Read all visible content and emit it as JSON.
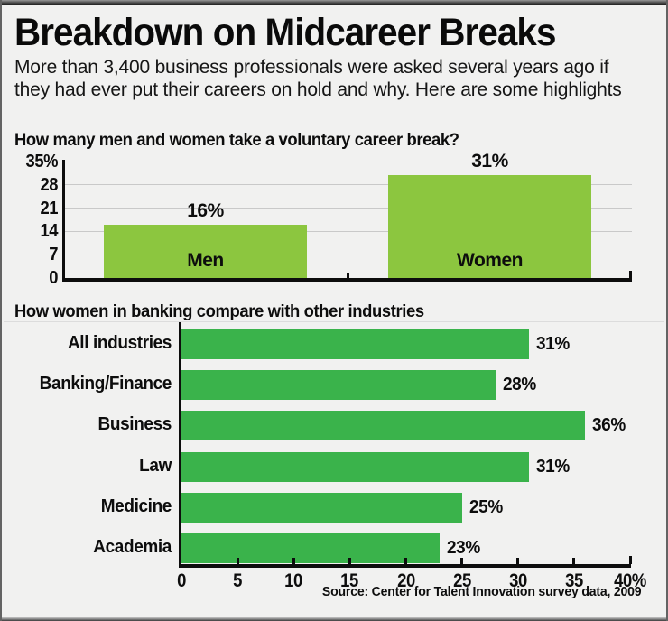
{
  "title": "Breakdown on Midcareer Breaks",
  "subtitle": "More than 3,400 business professionals were asked several years ago if they had ever put their careers on hold and why. Here are some highlights",
  "source": "Source: Center for Talent Innovation survey data, 2009",
  "colors": {
    "bar_green_light": "#8cc63f",
    "bar_green_dark": "#3ab34b",
    "background": "#f1f1f0",
    "gridline": "#c9c9c9",
    "axis": "#0d0d0d"
  },
  "chart_data": [
    {
      "type": "bar",
      "orientation": "vertical",
      "title": "How many men and women take a voluntary career break?",
      "categories": [
        "Men",
        "Women"
      ],
      "values": [
        16,
        31
      ],
      "value_labels": [
        "16%",
        "31%"
      ],
      "ylim": [
        0,
        35
      ],
      "yticks": [
        "35%",
        "28",
        "21",
        "14",
        "7",
        "0"
      ],
      "grid": true,
      "legend": "none"
    },
    {
      "type": "bar",
      "orientation": "horizontal",
      "title": "How women in banking compare with other industries",
      "categories": [
        "All industries",
        "Banking/Finance",
        "Business",
        "Law",
        "Medicine",
        "Academia"
      ],
      "values": [
        31,
        28,
        36,
        31,
        25,
        23
      ],
      "value_labels": [
        "31%",
        "28%",
        "36%",
        "31%",
        "25%",
        "23%"
      ],
      "xlim": [
        0,
        40
      ],
      "xticks": [
        "0",
        "5",
        "10",
        "15",
        "20",
        "25",
        "30",
        "35",
        "40%"
      ],
      "grid": false,
      "legend": "none"
    }
  ]
}
